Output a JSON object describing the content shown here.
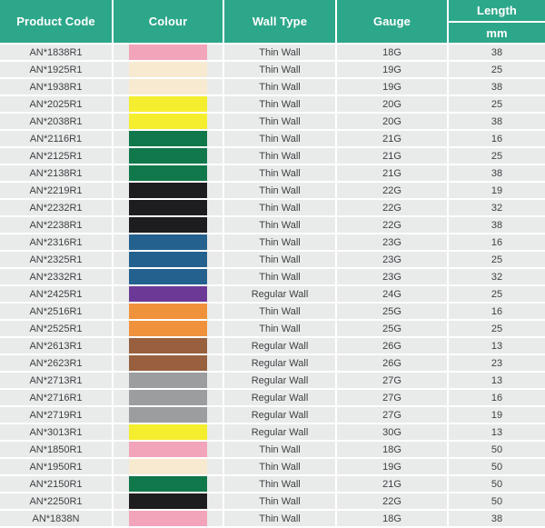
{
  "colors": {
    "header_bg": "#2da78a",
    "header_text": "#ffffff",
    "row_bg": "#e9eaea",
    "separator": "#ffffff",
    "text": "#3f4043"
  },
  "chart_data": {
    "type": "table",
    "columns": [
      {
        "key": "code",
        "label": "Product Code"
      },
      {
        "key": "colour",
        "label": "Colour"
      },
      {
        "key": "wall_type",
        "label": "Wall Type"
      },
      {
        "key": "gauge",
        "label": "Gauge"
      },
      {
        "key": "length_mm",
        "label": "Length",
        "sublabel": "mm"
      }
    ],
    "colour_hex": {
      "pink": "#f2a4ba",
      "cream": "#f7ead0",
      "yellow": "#f5ee2e",
      "green": "#10784a",
      "black": "#1d1d1f",
      "blue": "#24618f",
      "purple": "#6c3a96",
      "orange": "#f0913c",
      "brown": "#98603e",
      "grey": "#9b9d9f"
    },
    "rows": [
      {
        "code": "AN*1838R1",
        "colour": "pink",
        "wall_type": "Thin Wall",
        "gauge": "18G",
        "length_mm": 38
      },
      {
        "code": "AN*1925R1",
        "colour": "cream",
        "wall_type": "Thin Wall",
        "gauge": "19G",
        "length_mm": 25
      },
      {
        "code": "AN*1938R1",
        "colour": "cream",
        "wall_type": "Thin Wall",
        "gauge": "19G",
        "length_mm": 38
      },
      {
        "code": "AN*2025R1",
        "colour": "yellow",
        "wall_type": "Thin Wall",
        "gauge": "20G",
        "length_mm": 25
      },
      {
        "code": "AN*2038R1",
        "colour": "yellow",
        "wall_type": "Thin Wall",
        "gauge": "20G",
        "length_mm": 38
      },
      {
        "code": "AN*2116R1",
        "colour": "green",
        "wall_type": "Thin Wall",
        "gauge": "21G",
        "length_mm": 16
      },
      {
        "code": "AN*2125R1",
        "colour": "green",
        "wall_type": "Thin Wall",
        "gauge": "21G",
        "length_mm": 25
      },
      {
        "code": "AN*2138R1",
        "colour": "green",
        "wall_type": "Thin Wall",
        "gauge": "21G",
        "length_mm": 38
      },
      {
        "code": "AN*2219R1",
        "colour": "black",
        "wall_type": "Thin Wall",
        "gauge": "22G",
        "length_mm": 19
      },
      {
        "code": "AN*2232R1",
        "colour": "black",
        "wall_type": "Thin Wall",
        "gauge": "22G",
        "length_mm": 32
      },
      {
        "code": "AN*2238R1",
        "colour": "black",
        "wall_type": "Thin Wall",
        "gauge": "22G",
        "length_mm": 38
      },
      {
        "code": "AN*2316R1",
        "colour": "blue",
        "wall_type": "Thin Wall",
        "gauge": "23G",
        "length_mm": 16
      },
      {
        "code": "AN*2325R1",
        "colour": "blue",
        "wall_type": "Thin Wall",
        "gauge": "23G",
        "length_mm": 25
      },
      {
        "code": "AN*2332R1",
        "colour": "blue",
        "wall_type": "Thin Wall",
        "gauge": "23G",
        "length_mm": 32
      },
      {
        "code": "AN*2425R1",
        "colour": "purple",
        "wall_type": "Regular Wall",
        "gauge": "24G",
        "length_mm": 25
      },
      {
        "code": "AN*2516R1",
        "colour": "orange",
        "wall_type": "Thin Wall",
        "gauge": "25G",
        "length_mm": 16
      },
      {
        "code": "AN*2525R1",
        "colour": "orange",
        "wall_type": "Thin Wall",
        "gauge": "25G",
        "length_mm": 25
      },
      {
        "code": "AN*2613R1",
        "colour": "brown",
        "wall_type": "Regular Wall",
        "gauge": "26G",
        "length_mm": 13
      },
      {
        "code": "AN*2623R1",
        "colour": "brown",
        "wall_type": "Regular Wall",
        "gauge": "26G",
        "length_mm": 23
      },
      {
        "code": "AN*2713R1",
        "colour": "grey",
        "wall_type": "Regular Wall",
        "gauge": "27G",
        "length_mm": 13
      },
      {
        "code": "AN*2716R1",
        "colour": "grey",
        "wall_type": "Regular Wall",
        "gauge": "27G",
        "length_mm": 16
      },
      {
        "code": "AN*2719R1",
        "colour": "grey",
        "wall_type": "Regular Wall",
        "gauge": "27G",
        "length_mm": 19
      },
      {
        "code": "AN*3013R1",
        "colour": "yellow",
        "wall_type": "Regular Wall",
        "gauge": "30G",
        "length_mm": 13
      },
      {
        "code": "AN*1850R1",
        "colour": "pink",
        "wall_type": "Thin Wall",
        "gauge": "18G",
        "length_mm": 50
      },
      {
        "code": "AN*1950R1",
        "colour": "cream",
        "wall_type": "Thin Wall",
        "gauge": "19G",
        "length_mm": 50
      },
      {
        "code": "AN*2150R1",
        "colour": "green",
        "wall_type": "Thin Wall",
        "gauge": "21G",
        "length_mm": 50
      },
      {
        "code": "AN*2250R1",
        "colour": "black",
        "wall_type": "Thin Wall",
        "gauge": "22G",
        "length_mm": 50
      },
      {
        "code": "AN*1838N",
        "colour": "pink",
        "wall_type": "Thin Wall",
        "gauge": "18G",
        "length_mm": 38
      }
    ]
  }
}
